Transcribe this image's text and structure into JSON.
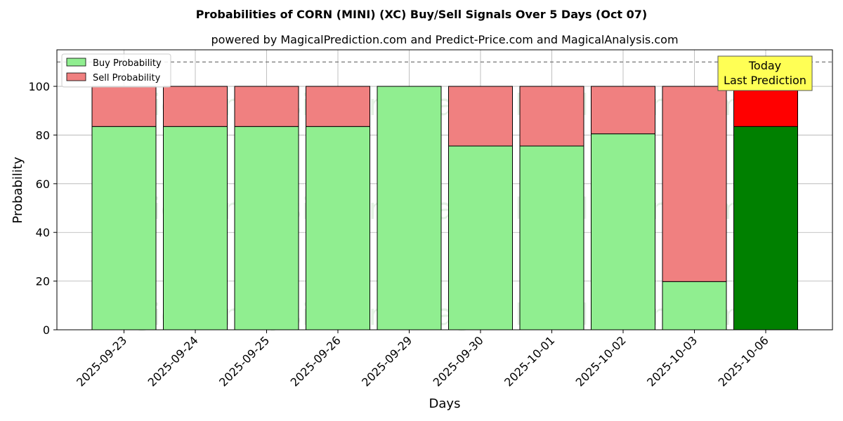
{
  "chart_data": {
    "type": "bar",
    "stacked": true,
    "title": "Probabilities of CORN (MINI) (XC) Buy/Sell Signals Over 5 Days (Oct 07)",
    "subtitle": "powered by MagicalPrediction.com and Predict-Price.com and MagicalAnalysis.com",
    "xlabel": "Days",
    "ylabel": "Probability",
    "ylim": [
      0,
      115
    ],
    "yticks": [
      0,
      20,
      40,
      60,
      80,
      100
    ],
    "threshold_line": 110,
    "grid": true,
    "legend_position": "top-left",
    "categories": [
      "2025-09-23",
      "2025-09-24",
      "2025-09-25",
      "2025-09-26",
      "2025-09-29",
      "2025-09-30",
      "2025-10-01",
      "2025-10-02",
      "2025-10-03",
      "2025-10-06"
    ],
    "series": [
      {
        "name": "Buy Probability",
        "values": [
          83.5,
          83.5,
          83.5,
          83.5,
          100,
          75.5,
          75.5,
          80.5,
          19.8,
          83.5
        ]
      },
      {
        "name": "Sell Probability",
        "values": [
          16.5,
          16.5,
          16.5,
          16.5,
          0,
          24.5,
          24.5,
          19.5,
          80.2,
          16.5
        ]
      }
    ],
    "annotation": {
      "line1": "Today",
      "line2": "Last Prediction",
      "category_index": 9
    },
    "colors": {
      "buy": "#90ee90",
      "sell": "#f08080",
      "buy_highlight": "#008000",
      "sell_highlight": "#ff0000",
      "annotation_bg": "#ffff55",
      "grid": "#b0b0b0"
    },
    "watermarks": [
      "MagicalAnalysis.com",
      "MagicalPrediction.com"
    ]
  }
}
